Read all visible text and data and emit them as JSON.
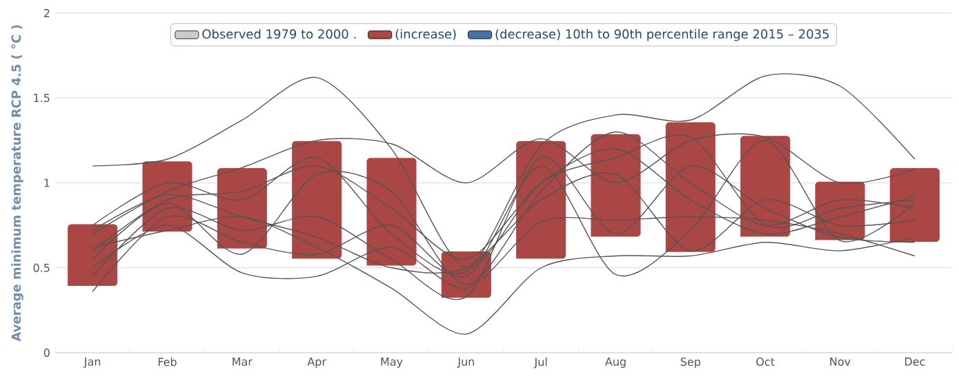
{
  "chart_data": {
    "type": "bar",
    "ylabel": "Average minimum temperature RCP 4.5 ( °C )",
    "categories": [
      "Jan",
      "Feb",
      "Mar",
      "Apr",
      "May",
      "Jun",
      "Jul",
      "Aug",
      "Sep",
      "Oct",
      "Nov",
      "Dec"
    ],
    "ylim": [
      0,
      2
    ],
    "yticks": [
      0,
      0.5,
      1,
      1.5,
      2
    ],
    "grid": "y",
    "legend": "top",
    "series": [
      {
        "name": "Observed 1979 to 2000 .",
        "color": "#cccccc",
        "values": [
          null,
          null,
          null,
          null,
          null,
          null,
          null,
          null,
          null,
          null,
          null,
          null
        ]
      },
      {
        "name": "(increase)",
        "color": "#aa4643",
        "base": [
          0.39,
          0.71,
          0.61,
          0.55,
          0.51,
          0.32,
          0.55,
          0.68,
          0.59,
          0.68,
          0.66,
          0.65
        ],
        "values": [
          0.37,
          0.42,
          0.48,
          0.7,
          0.64,
          0.28,
          0.7,
          0.61,
          0.77,
          0.6,
          0.35,
          0.44
        ]
      },
      {
        "name": "(decrease) 10th to 90th percentile range 2015 – 2035",
        "color": "#4572a7",
        "values": [
          null,
          null,
          null,
          null,
          null,
          null,
          null,
          null,
          null,
          null,
          null,
          null
        ]
      },
      {
        "type": "line",
        "color": "#555555",
        "values": [
          1.1,
          1.14,
          1.37,
          1.62,
          1.2,
          0.5,
          1.0,
          1.15,
          1.27,
          0.75,
          0.85,
          0.9
        ]
      },
      {
        "type": "line",
        "color": "#555555",
        "values": [
          0.75,
          1.0,
          0.9,
          1.15,
          0.7,
          0.48,
          1.22,
          1.4,
          1.37,
          1.63,
          1.57,
          1.14
        ]
      },
      {
        "type": "line",
        "color": "#555555",
        "values": [
          0.62,
          0.72,
          0.8,
          0.62,
          0.38,
          0.11,
          0.5,
          0.57,
          0.57,
          0.65,
          0.6,
          0.68
        ]
      },
      {
        "type": "line",
        "color": "#555555",
        "values": [
          0.7,
          0.95,
          1.09,
          1.25,
          1.23,
          1.0,
          1.26,
          1.0,
          1.25,
          1.27,
          1.0,
          1.08
        ]
      },
      {
        "type": "line",
        "color": "#555555",
        "values": [
          0.5,
          0.75,
          0.47,
          0.45,
          0.62,
          0.38,
          0.77,
          0.78,
          0.8,
          0.78,
          0.7,
          0.57
        ]
      },
      {
        "type": "line",
        "color": "#555555",
        "values": [
          0.36,
          0.8,
          0.65,
          0.58,
          0.75,
          0.45,
          1.1,
          0.46,
          0.72,
          1.25,
          0.66,
          0.88
        ]
      },
      {
        "type": "line",
        "color": "#555555",
        "values": [
          0.6,
          0.9,
          0.95,
          1.1,
          0.85,
          0.55,
          1.0,
          1.2,
          0.9,
          0.7,
          0.8,
          0.92
        ]
      },
      {
        "type": "line",
        "color": "#555555",
        "values": [
          0.45,
          0.85,
          0.72,
          0.8,
          0.55,
          0.33,
          1.15,
          0.7,
          1.1,
          0.85,
          0.68,
          0.65
        ]
      },
      {
        "type": "line",
        "color": "#555555",
        "values": [
          0.55,
          0.88,
          0.58,
          1.05,
          0.95,
          0.4,
          0.95,
          1.3,
          1.0,
          0.75,
          0.9,
          0.85
        ]
      },
      {
        "type": "line",
        "color": "#555555",
        "values": [
          0.72,
          0.93,
          0.8,
          0.68,
          0.5,
          0.5,
          0.9,
          1.05,
          0.6,
          0.9,
          0.75,
          0.78
        ]
      }
    ]
  }
}
